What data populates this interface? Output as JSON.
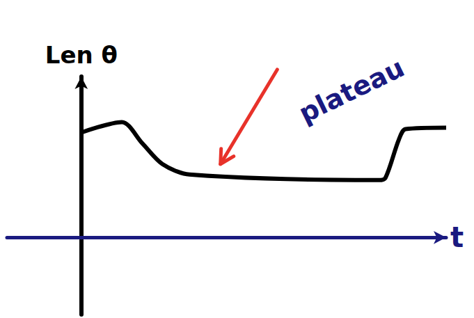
{
  "chart_data": {
    "type": "line",
    "y_label": "Len θ",
    "x_label": "t",
    "x": [
      0,
      0.6,
      0.9,
      1.2,
      1.6,
      4.4,
      4.5,
      4.7,
      4.8,
      5.4
    ],
    "values": [
      1.5,
      1.65,
      1.35,
      1.05,
      0.9,
      0.82,
      0.85,
      1.4,
      1.55,
      1.57
    ],
    "xlim": [
      -1.1,
      5.4
    ],
    "ylim": [
      -1.1,
      2.3
    ],
    "tick_labels": false,
    "color": "#000000",
    "annotations": [
      {
        "text": "plateau",
        "x": 4.0,
        "y": 2.1,
        "color": "#1a1a80",
        "arrow_from": [
          2.9,
          2.4
        ],
        "arrow_to": [
          2.06,
          1.05
        ],
        "arrow_color": "#e8322a"
      }
    ]
  }
}
